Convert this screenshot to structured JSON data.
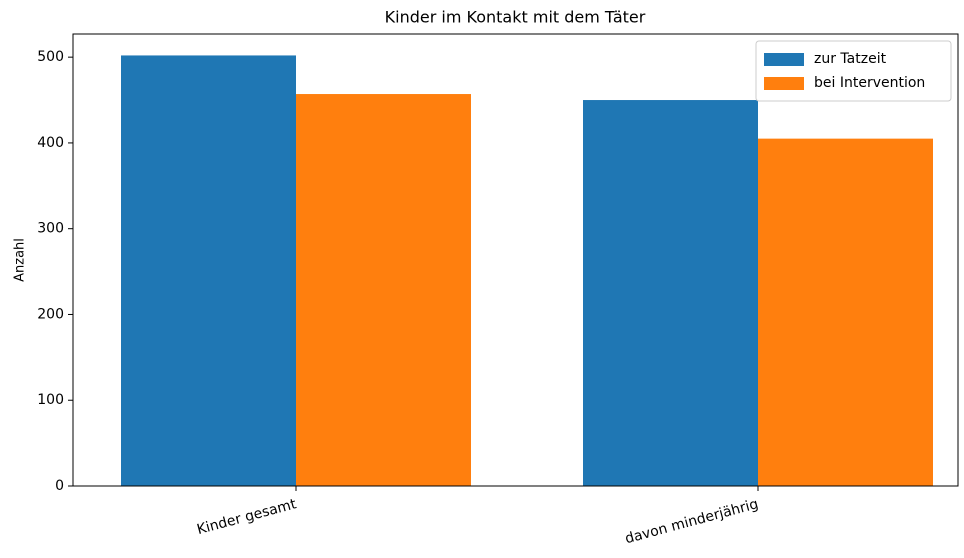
{
  "chart_data": {
    "type": "bar",
    "title": "Kinder im Kontakt mit dem Täter",
    "ylabel": "Anzahl",
    "categories": [
      "Kinder gesamt",
      "davon minderjährig"
    ],
    "series": [
      {
        "name": "zur Tatzeit",
        "color": "#1f77b4",
        "values": [
          502,
          450
        ]
      },
      {
        "name": "bei Intervention",
        "color": "#ff7f0e",
        "values": [
          457,
          405
        ]
      }
    ],
    "ylim": [
      0,
      527
    ],
    "yticks": [
      0,
      100,
      200,
      300,
      400,
      500
    ],
    "legend": "upper right"
  }
}
